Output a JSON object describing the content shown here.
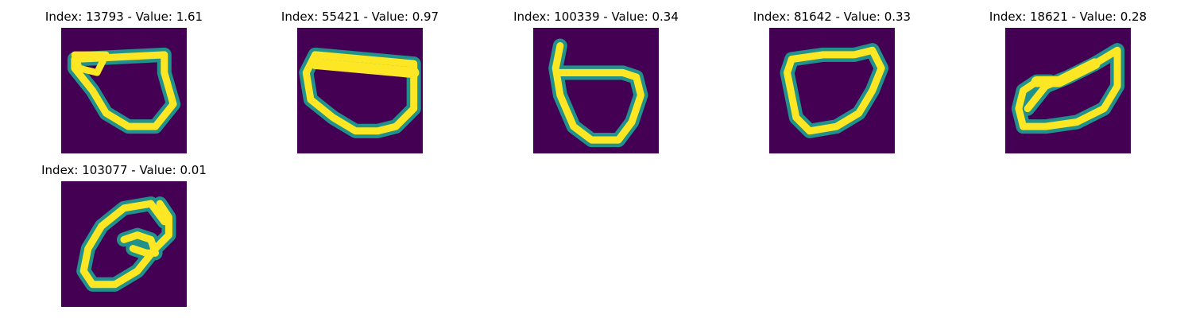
{
  "figure": {
    "panels": [
      {
        "title": "Index: 13793 - Value: 1.61",
        "icon": "handwritten-digit-0-icon"
      },
      {
        "title": "Index: 55421 - Value: 0.97",
        "icon": "handwritten-digit-0-icon"
      },
      {
        "title": "Index: 100339 - Value: 0.34",
        "icon": "handwritten-digit-6-icon"
      },
      {
        "title": "Index: 81642 - Value: 0.33",
        "icon": "handwritten-digit-0-icon"
      },
      {
        "title": "Index: 18621 - Value: 0.28",
        "icon": "handwritten-digit-0-icon"
      },
      {
        "title": "Index: 103077 - Value: 0.01",
        "icon": "handwritten-digit-0-icon"
      }
    ],
    "colors": {
      "background": "#440154",
      "stroke_core": "#fde725",
      "stroke_edge": "#21918c"
    }
  }
}
